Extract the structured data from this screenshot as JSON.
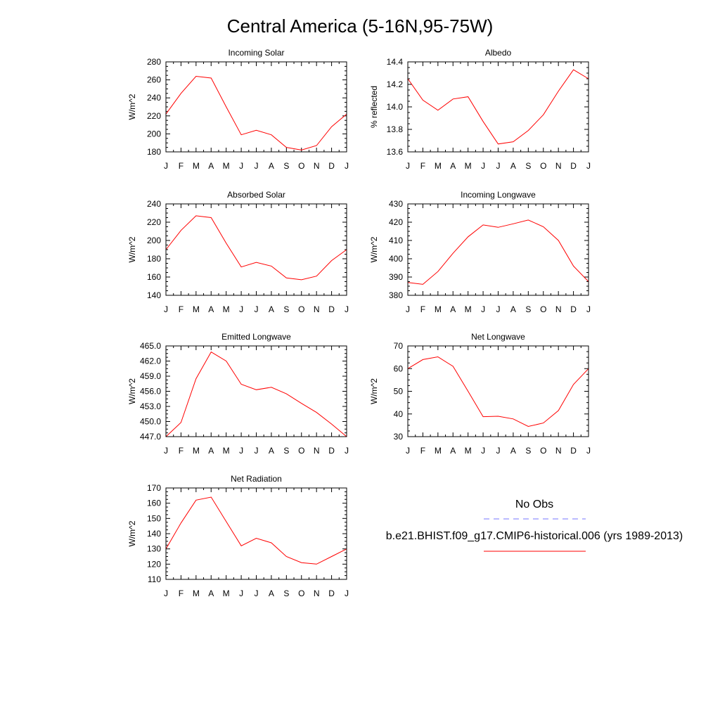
{
  "title": "Central America (5-16N,95-75W)",
  "months": [
    "J",
    "F",
    "M",
    "A",
    "M",
    "J",
    "J",
    "A",
    "S",
    "O",
    "N",
    "D",
    "J"
  ],
  "chart_data": [
    {
      "type": "line",
      "title": "Incoming Solar",
      "ylabel": "W/m^2",
      "ylim": [
        180,
        280
      ],
      "yticks": [
        180,
        200,
        220,
        240,
        260,
        280
      ],
      "ytick_labels": [
        "180",
        "200",
        "220",
        "240",
        "260",
        "280"
      ],
      "series": [
        {
          "name": "b.e21.BHIST.f09_g17.CMIP6-historical.006 (yrs 1989-2013)",
          "color": "#ff0000",
          "values": [
            222,
            245,
            264,
            262,
            230,
            199,
            204,
            199,
            185,
            182,
            187,
            208,
            222
          ]
        }
      ]
    },
    {
      "type": "line",
      "title": "Albedo",
      "ylabel": "% reflected",
      "ylim": [
        13.6,
        14.4
      ],
      "yticks": [
        13.6,
        13.8,
        14.0,
        14.2,
        14.4
      ],
      "ytick_labels": [
        "13.6",
        "13.8",
        "14.0",
        "14.2",
        "14.4"
      ],
      "series": [
        {
          "name": "b.e21.BHIST.f09_g17.CMIP6-historical.006 (yrs 1989-2013)",
          "color": "#ff0000",
          "values": [
            14.25,
            14.06,
            13.97,
            14.07,
            14.09,
            13.87,
            13.67,
            13.69,
            13.79,
            13.93,
            14.14,
            14.33,
            14.25
          ]
        }
      ]
    },
    {
      "type": "line",
      "title": "Absorbed Solar",
      "ylabel": "W/m^2",
      "ylim": [
        140,
        240
      ],
      "yticks": [
        140,
        160,
        180,
        200,
        220,
        240
      ],
      "ytick_labels": [
        "140",
        "160",
        "180",
        "200",
        "220",
        "240"
      ],
      "series": [
        {
          "name": "b.e21.BHIST.f09_g17.CMIP6-historical.006 (yrs 1989-2013)",
          "color": "#ff0000",
          "values": [
            190,
            211,
            227,
            225,
            197,
            171,
            176,
            172,
            159,
            157,
            161,
            178,
            190
          ]
        }
      ]
    },
    {
      "type": "line",
      "title": "Incoming Longwave",
      "ylabel": "W/m^2",
      "ylim": [
        380,
        430
      ],
      "yticks": [
        380,
        390,
        400,
        410,
        420,
        430
      ],
      "ytick_labels": [
        "380",
        "390",
        "400",
        "410",
        "420",
        "430"
      ],
      "series": [
        {
          "name": "b.e21.BHIST.f09_g17.CMIP6-historical.006 (yrs 1989-2013)",
          "color": "#ff0000",
          "values": [
            387,
            386,
            393,
            403,
            412,
            418.5,
            417.2,
            419.1,
            421.2,
            417.5,
            410,
            396,
            387.5
          ]
        }
      ]
    },
    {
      "type": "line",
      "title": "Emitted Longwave",
      "ylabel": "W/m^2",
      "ylim": [
        447,
        465
      ],
      "yticks": [
        447,
        450,
        453,
        456,
        459,
        462,
        465
      ],
      "ytick_labels": [
        "447.0",
        "450.0",
        "453.0",
        "456.0",
        "459.0",
        "462.0",
        "465.0"
      ],
      "series": [
        {
          "name": "b.e21.BHIST.f09_g17.CMIP6-historical.006 (yrs 1989-2013)",
          "color": "#ff0000",
          "values": [
            447,
            449.8,
            458.5,
            463.8,
            462,
            457.4,
            456.3,
            456.8,
            455.5,
            453.6,
            451.8,
            449.5,
            447
          ]
        }
      ]
    },
    {
      "type": "line",
      "title": "Net Longwave",
      "ylabel": "W/m^2",
      "ylim": [
        30,
        70
      ],
      "yticks": [
        30,
        40,
        50,
        60,
        70
      ],
      "ytick_labels": [
        "30",
        "40",
        "50",
        "60",
        "70"
      ],
      "series": [
        {
          "name": "b.e21.BHIST.f09_g17.CMIP6-historical.006 (yrs 1989-2013)",
          "color": "#ff0000",
          "values": [
            60,
            64,
            65.2,
            61,
            50,
            38.8,
            39,
            37.8,
            34.5,
            36,
            41.5,
            53,
            60
          ]
        }
      ]
    },
    {
      "type": "line",
      "title": "Net Radiation",
      "ylabel": "W/m^2",
      "ylim": [
        110,
        170
      ],
      "yticks": [
        110,
        120,
        130,
        140,
        150,
        160,
        170
      ],
      "ytick_labels": [
        "110",
        "120",
        "130",
        "140",
        "150",
        "160",
        "170"
      ],
      "series": [
        {
          "name": "b.e21.BHIST.f09_g17.CMIP6-historical.006 (yrs 1989-2013)",
          "color": "#ff0000",
          "values": [
            130,
            147,
            162,
            164,
            148,
            132,
            137,
            134,
            125,
            121,
            120,
            125,
            130
          ]
        }
      ]
    }
  ],
  "legend": {
    "obs_label": "No Obs",
    "obs_color": "#0000ff",
    "model_label": "b.e21.BHIST.f09_g17.CMIP6-historical.006 (yrs 1989-2013)",
    "model_color": "#ff0000"
  }
}
